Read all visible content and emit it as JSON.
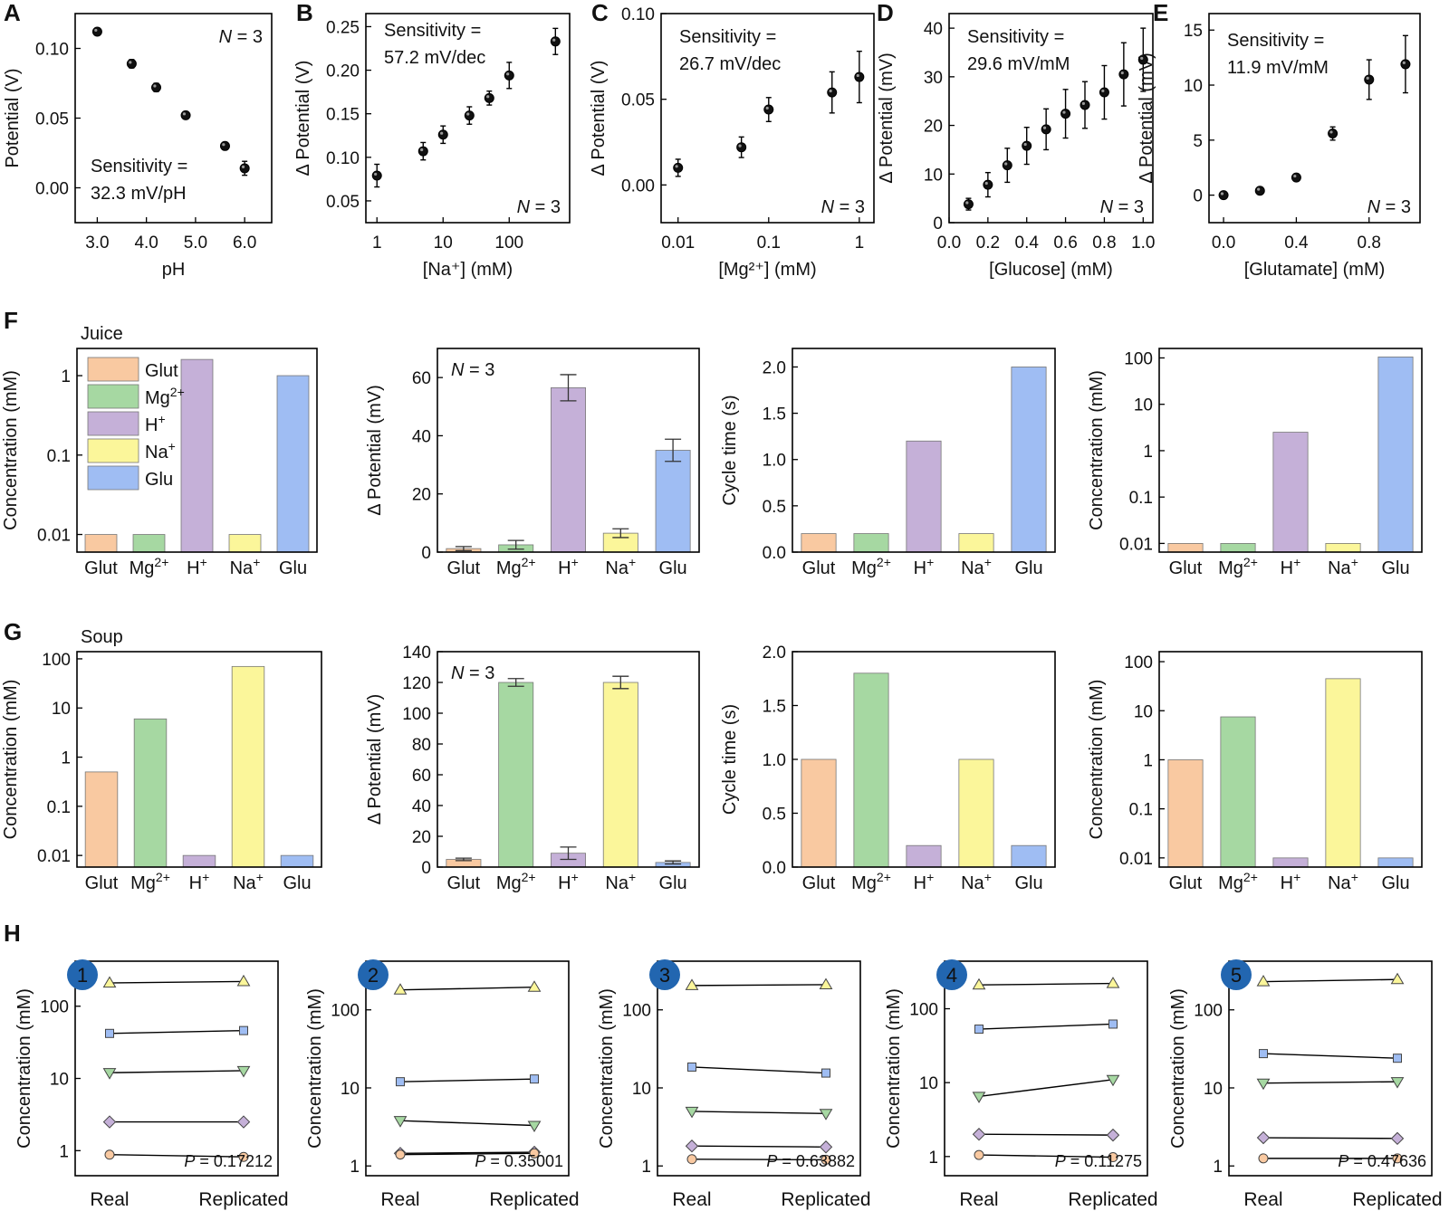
{
  "figure": {
    "panel_letters": [
      "A",
      "B",
      "C",
      "D",
      "E",
      "F",
      "G",
      "H"
    ],
    "group_labels": {
      "F": "Juice",
      "G": "Soup"
    }
  },
  "colors": {
    "glut": "#f9c9a1",
    "mg": "#a6d8a2",
    "h": "#c5b0d8",
    "na": "#fbf69a",
    "glu": "#9fbdf3",
    "badge": "#2266b0"
  },
  "legend_F": [
    {
      "text": "Glut",
      "sup": "",
      "color": "#f9c9a1"
    },
    {
      "text": "Mg",
      "sup": "2+",
      "color": "#a6d8a2"
    },
    {
      "text": "H",
      "sup": "+",
      "color": "#c5b0d8"
    },
    {
      "text": "Na",
      "sup": "+",
      "color": "#fbf69a"
    },
    {
      "text": "Glu",
      "sup": "",
      "color": "#9fbdf3"
    }
  ],
  "cat_labels": [
    {
      "text": "Glut",
      "sup": ""
    },
    {
      "text": "Mg",
      "sup": "2+"
    },
    {
      "text": "H",
      "sup": "+"
    },
    {
      "text": "Na",
      "sup": "+"
    },
    {
      "text": "Glu",
      "sup": ""
    }
  ],
  "chart_data": [
    {
      "id": "A",
      "type": "scatter",
      "ylabel": "Potential (V)",
      "xlabel": "pH",
      "xlim": [
        2.55,
        6.55
      ],
      "ylim": [
        -0.025,
        0.125
      ],
      "xticks": [
        {
          "v": 3.0,
          "t": "3.0"
        },
        {
          "v": 4.0,
          "t": "4.0"
        },
        {
          "v": 5.0,
          "t": "5.0"
        },
        {
          "v": 6.0,
          "t": "6.0"
        }
      ],
      "yticks": [
        {
          "v": 0.0,
          "t": "0.00"
        },
        {
          "v": 0.05,
          "t": "0.05"
        },
        {
          "v": 0.1,
          "t": "0.10"
        }
      ],
      "points": [
        [
          3.0,
          0.112,
          0.001
        ],
        [
          3.7,
          0.089,
          0.003
        ],
        [
          4.2,
          0.072,
          0.003
        ],
        [
          4.8,
          0.052,
          0.001
        ],
        [
          5.6,
          0.03,
          0.001
        ],
        [
          6.0,
          0.014,
          0.005
        ]
      ],
      "annotation": [
        "Sensitivity =",
        "32.3 mV/pH"
      ],
      "n_label": "N = 3"
    },
    {
      "id": "B",
      "type": "scatter",
      "xscale": "log",
      "ylabel": "Δ Potential (V)",
      "xlabel": "[Na⁺] (mM)",
      "xlim": [
        0.68,
        820
      ],
      "ylim": [
        0.025,
        0.265
      ],
      "xticks": [
        {
          "v": 1,
          "t": "1"
        },
        {
          "v": 10,
          "t": "10"
        },
        {
          "v": 100,
          "t": "100"
        }
      ],
      "yticks": [
        {
          "v": 0.05,
          "t": "0.05"
        },
        {
          "v": 0.1,
          "t": "0.10"
        },
        {
          "v": 0.15,
          "t": "0.15"
        },
        {
          "v": 0.2,
          "t": "0.20"
        },
        {
          "v": 0.25,
          "t": "0.25"
        }
      ],
      "points": [
        [
          1,
          0.079,
          0.013
        ],
        [
          5,
          0.107,
          0.01
        ],
        [
          10,
          0.126,
          0.01
        ],
        [
          25,
          0.148,
          0.01
        ],
        [
          50,
          0.168,
          0.008
        ],
        [
          100,
          0.194,
          0.015
        ],
        [
          500,
          0.233,
          0.015
        ]
      ],
      "annotation": [
        "Sensitivity =",
        "57.2 mV/dec"
      ],
      "n_label": "N = 3"
    },
    {
      "id": "C",
      "type": "scatter",
      "xscale": "log",
      "ylabel": "Δ Potential (V)",
      "xlabel": "[Mg²⁺] (mM)",
      "xlim": [
        0.0065,
        1.45
      ],
      "ylim": [
        -0.022,
        0.1
      ],
      "xticks": [
        {
          "v": 0.01,
          "t": "0.01"
        },
        {
          "v": 0.1,
          "t": "0.1"
        },
        {
          "v": 1,
          "t": "1"
        }
      ],
      "yticks": [
        {
          "v": 0.0,
          "t": "0.00"
        },
        {
          "v": 0.05,
          "t": "0.05"
        },
        {
          "v": 0.1,
          "t": "0.10"
        }
      ],
      "points": [
        [
          0.01,
          0.01,
          0.005
        ],
        [
          0.05,
          0.022,
          0.006
        ],
        [
          0.1,
          0.044,
          0.007
        ],
        [
          0.5,
          0.054,
          0.012
        ],
        [
          1.0,
          0.063,
          0.015
        ]
      ],
      "annotation": [
        "Sensitivity =",
        "26.7 mV/dec"
      ],
      "n_label": "N = 3"
    },
    {
      "id": "D",
      "type": "scatter",
      "ylabel": "Δ Potential (mV)",
      "xlabel": "[Glucose] (mM)",
      "xlim": [
        0.0,
        1.05
      ],
      "ylim": [
        0,
        43
      ],
      "xticks": [
        {
          "v": 0.0,
          "t": "0.0"
        },
        {
          "v": 0.2,
          "t": "0.2"
        },
        {
          "v": 0.4,
          "t": "0.4"
        },
        {
          "v": 0.6,
          "t": "0.6"
        },
        {
          "v": 0.8,
          "t": "0.8"
        },
        {
          "v": 1.0,
          "t": "1.0"
        }
      ],
      "yticks": [
        {
          "v": 0,
          "t": "0"
        },
        {
          "v": 10,
          "t": "10"
        },
        {
          "v": 20,
          "t": "20"
        },
        {
          "v": 30,
          "t": "30"
        },
        {
          "v": 40,
          "t": "40"
        }
      ],
      "points": [
        [
          0.1,
          3.8,
          1.2
        ],
        [
          0.2,
          7.8,
          2.5
        ],
        [
          0.3,
          11.8,
          3.5
        ],
        [
          0.4,
          15.8,
          3.8
        ],
        [
          0.5,
          19.2,
          4.2
        ],
        [
          0.6,
          22.4,
          5.0
        ],
        [
          0.7,
          24.2,
          4.8
        ],
        [
          0.8,
          26.8,
          5.5
        ],
        [
          0.9,
          30.5,
          6.5
        ],
        [
          1.0,
          33.5,
          6.5
        ]
      ],
      "annotation": [
        "Sensitivity =",
        "29.6 mV/mM"
      ],
      "n_label": "N = 3"
    },
    {
      "id": "E",
      "type": "scatter",
      "ylabel": "Δ Potential (mV)",
      "xlabel": "[Glutamate] (mM)",
      "xlim": [
        -0.08,
        1.08
      ],
      "ylim": [
        -2.5,
        16.5
      ],
      "xticks": [
        {
          "v": 0.0,
          "t": "0.0"
        },
        {
          "v": 0.4,
          "t": "0.4"
        },
        {
          "v": 0.8,
          "t": "0.8"
        }
      ],
      "yticks": [
        {
          "v": 0,
          "t": "0"
        },
        {
          "v": 5,
          "t": "5"
        },
        {
          "v": 10,
          "t": "10"
        },
        {
          "v": 15,
          "t": "15"
        }
      ],
      "points": [
        [
          0.0,
          0.0,
          0.1
        ],
        [
          0.2,
          0.4,
          0.1
        ],
        [
          0.4,
          1.6,
          0.2
        ],
        [
          0.6,
          5.6,
          0.6
        ],
        [
          0.8,
          10.5,
          1.8
        ],
        [
          1.0,
          11.9,
          2.6
        ]
      ],
      "annotation": [
        "Sensitivity =",
        "11.9 mV/mM"
      ],
      "n_label": "N = 3"
    },
    {
      "id": "F1",
      "type": "bar",
      "yscale": "log",
      "ylabel": "Concentration (mM)",
      "ylim": [
        0.006,
        2.2
      ],
      "yticks": [
        {
          "v": 0.01,
          "t": "0.01"
        },
        {
          "v": 0.1,
          "t": "0.1"
        },
        {
          "v": 1,
          "t": "1"
        }
      ],
      "values": [
        0.01,
        0.01,
        1.6,
        0.01,
        1.0
      ],
      "legend": true
    },
    {
      "id": "F2",
      "type": "bar",
      "ylabel": "Δ Potential (mV)",
      "ylim": [
        0,
        70
      ],
      "yticks": [
        {
          "v": 0,
          "t": "0"
        },
        {
          "v": 20,
          "t": "20"
        },
        {
          "v": 40,
          "t": "40"
        },
        {
          "v": 60,
          "t": "60"
        }
      ],
      "values": [
        1.2,
        2.5,
        56.5,
        6.5,
        35.0
      ],
      "errors": [
        0.7,
        1.5,
        4.5,
        1.5,
        3.8
      ],
      "n_label": "N = 3"
    },
    {
      "id": "F3",
      "type": "bar",
      "ylabel": "Cycle time (s)",
      "ylim": [
        0,
        2.2
      ],
      "yticks": [
        {
          "v": 0.0,
          "t": "0.0"
        },
        {
          "v": 0.5,
          "t": "0.5"
        },
        {
          "v": 1.0,
          "t": "1.0"
        },
        {
          "v": 1.5,
          "t": "1.5"
        },
        {
          "v": 2.0,
          "t": "2.0"
        }
      ],
      "values": [
        0.2,
        0.2,
        1.2,
        0.2,
        2.0
      ]
    },
    {
      "id": "F4",
      "type": "bar",
      "yscale": "log",
      "ylabel": "Concentration (mM)",
      "ylim": [
        0.0065,
        160
      ],
      "yticks": [
        {
          "v": 0.01,
          "t": "0.01"
        },
        {
          "v": 0.1,
          "t": "0.1"
        },
        {
          "v": 1,
          "t": "1"
        },
        {
          "v": 10,
          "t": "10"
        },
        {
          "v": 100,
          "t": "100"
        }
      ],
      "values": [
        0.01,
        0.01,
        2.5,
        0.01,
        105
      ]
    },
    {
      "id": "G1",
      "type": "bar",
      "yscale": "log",
      "ylabel": "Concentration (mM)",
      "ylim": [
        0.0058,
        140
      ],
      "yticks": [
        {
          "v": 0.01,
          "t": "0.01"
        },
        {
          "v": 0.1,
          "t": "0.1"
        },
        {
          "v": 1,
          "t": "1"
        },
        {
          "v": 10,
          "t": "10"
        },
        {
          "v": 100,
          "t": "100"
        }
      ],
      "values": [
        0.5,
        6.0,
        0.01,
        70,
        0.01
      ]
    },
    {
      "id": "G2",
      "type": "bar",
      "ylabel": "Δ Potential (mV)",
      "ylim": [
        0,
        140
      ],
      "yticks": [
        {
          "v": 0,
          "t": "0"
        },
        {
          "v": 20,
          "t": "20"
        },
        {
          "v": 40,
          "t": "40"
        },
        {
          "v": 60,
          "t": "60"
        },
        {
          "v": 80,
          "t": "80"
        },
        {
          "v": 100,
          "t": "100"
        },
        {
          "v": 120,
          "t": "120"
        },
        {
          "v": 140,
          "t": "140"
        }
      ],
      "values": [
        5.0,
        120.0,
        9.0,
        120.0,
        3.0
      ],
      "errors": [
        0.8,
        2.5,
        4.0,
        4.0,
        1.0
      ],
      "n_label": "N = 3"
    },
    {
      "id": "G3",
      "type": "bar",
      "ylabel": "Cycle time (s)",
      "ylim": [
        0,
        2.0
      ],
      "yticks": [
        {
          "v": 0.0,
          "t": "0.0"
        },
        {
          "v": 0.5,
          "t": "0.5"
        },
        {
          "v": 1.0,
          "t": "1.0"
        },
        {
          "v": 1.5,
          "t": "1.5"
        },
        {
          "v": 2.0,
          "t": "2.0"
        }
      ],
      "values": [
        1.0,
        1.8,
        0.2,
        1.0,
        0.2
      ]
    },
    {
      "id": "G4",
      "type": "bar",
      "yscale": "log",
      "ylabel": "Concentration (mM)",
      "ylim": [
        0.0065,
        160
      ],
      "yticks": [
        {
          "v": 0.01,
          "t": "0.01"
        },
        {
          "v": 0.1,
          "t": "0.1"
        },
        {
          "v": 1,
          "t": "1"
        },
        {
          "v": 10,
          "t": "10"
        },
        {
          "v": 100,
          "t": "100"
        }
      ],
      "values": [
        1.0,
        7.5,
        0.01,
        45,
        0.01
      ]
    },
    {
      "id": "H1",
      "type": "line",
      "yscale": "log",
      "badge": "1",
      "ylabel": "Concentration (mM)",
      "categories": [
        "Real",
        "Replicated"
      ],
      "ylim": [
        0.45,
        420
      ],
      "yticks": [
        {
          "v": 1,
          "t": "1"
        },
        {
          "v": 10,
          "t": "10"
        },
        {
          "v": 100,
          "t": "100"
        }
      ],
      "p_label": "P = 0.17212",
      "series": [
        {
          "name": "Na",
          "marker": "triangle-up",
          "values": [
            210,
            220
          ]
        },
        {
          "name": "Glu",
          "marker": "square",
          "values": [
            42,
            46
          ]
        },
        {
          "name": "Mg",
          "marker": "triangle-down",
          "values": [
            12,
            12.8
          ]
        },
        {
          "name": "H",
          "marker": "diamond",
          "values": [
            2.5,
            2.5
          ]
        },
        {
          "name": "Glut",
          "marker": "circle",
          "values": [
            0.88,
            0.82
          ]
        }
      ]
    },
    {
      "id": "H2",
      "type": "line",
      "yscale": "log",
      "badge": "2",
      "ylabel": "Concentration (mM)",
      "categories": [
        "Real",
        "Replicated"
      ],
      "ylim": [
        0.75,
        420
      ],
      "yticks": [
        {
          "v": 1,
          "t": "1"
        },
        {
          "v": 10,
          "t": "10"
        },
        {
          "v": 100,
          "t": "100"
        }
      ],
      "p_label": "P = 0.35001",
      "series": [
        {
          "name": "Na",
          "marker": "triangle-up",
          "values": [
            180,
            195
          ]
        },
        {
          "name": "Glu",
          "marker": "square",
          "values": [
            12,
            13
          ]
        },
        {
          "name": "Mg",
          "marker": "triangle-down",
          "values": [
            3.8,
            3.3
          ]
        },
        {
          "name": "H",
          "marker": "diamond",
          "values": [
            1.45,
            1.5
          ]
        },
        {
          "name": "Glut",
          "marker": "circle",
          "values": [
            1.4,
            1.45
          ]
        }
      ]
    },
    {
      "id": "H3",
      "type": "line",
      "yscale": "log",
      "badge": "3",
      "ylabel": "Concentration (mM)",
      "categories": [
        "Real",
        "Replicated"
      ],
      "ylim": [
        0.75,
        420
      ],
      "yticks": [
        {
          "v": 1,
          "t": "1"
        },
        {
          "v": 10,
          "t": "10"
        },
        {
          "v": 100,
          "t": "100"
        }
      ],
      "p_label": "P = 0.63882",
      "series": [
        {
          "name": "Na",
          "marker": "triangle-up",
          "values": [
            205,
            210
          ]
        },
        {
          "name": "Glu",
          "marker": "square",
          "values": [
            18.5,
            15.5
          ]
        },
        {
          "name": "Mg",
          "marker": "triangle-down",
          "values": [
            5.0,
            4.7
          ]
        },
        {
          "name": "H",
          "marker": "diamond",
          "values": [
            1.8,
            1.75
          ]
        },
        {
          "name": "Glut",
          "marker": "circle",
          "values": [
            1.22,
            1.2
          ]
        }
      ]
    },
    {
      "id": "H4",
      "type": "line",
      "yscale": "log",
      "badge": "4",
      "ylabel": "Concentration (mM)",
      "categories": [
        "Real",
        "Replicated"
      ],
      "ylim": [
        0.55,
        440
      ],
      "yticks": [
        {
          "v": 1,
          "t": "1"
        },
        {
          "v": 10,
          "t": "10"
        },
        {
          "v": 100,
          "t": "100"
        }
      ],
      "p_label": "P = 0.11275",
      "series": [
        {
          "name": "Na",
          "marker": "triangle-up",
          "values": [
            210,
            220
          ]
        },
        {
          "name": "Glu",
          "marker": "square",
          "values": [
            53,
            62
          ]
        },
        {
          "name": "Mg",
          "marker": "triangle-down",
          "values": [
            6.5,
            11.0
          ]
        },
        {
          "name": "H",
          "marker": "diamond",
          "values": [
            2.0,
            1.95
          ]
        },
        {
          "name": "Glut",
          "marker": "circle",
          "values": [
            1.05,
            0.98
          ]
        }
      ]
    },
    {
      "id": "H5",
      "type": "line",
      "yscale": "log",
      "badge": "5",
      "ylabel": "Concentration (mM)",
      "categories": [
        "Real",
        "Replicated"
      ],
      "ylim": [
        0.75,
        420
      ],
      "yticks": [
        {
          "v": 1,
          "t": "1"
        },
        {
          "v": 10,
          "t": "10"
        },
        {
          "v": 100,
          "t": "100"
        }
      ],
      "p_label": "P = 0.47636",
      "series": [
        {
          "name": "Na",
          "marker": "triangle-up",
          "values": [
            230,
            245
          ]
        },
        {
          "name": "Glu",
          "marker": "square",
          "values": [
            27.5,
            24.0
          ]
        },
        {
          "name": "Mg",
          "marker": "triangle-down",
          "values": [
            11.5,
            12.0
          ]
        },
        {
          "name": "H",
          "marker": "diamond",
          "values": [
            2.3,
            2.25
          ]
        },
        {
          "name": "Glut",
          "marker": "circle",
          "values": [
            1.25,
            1.25
          ]
        }
      ]
    }
  ]
}
